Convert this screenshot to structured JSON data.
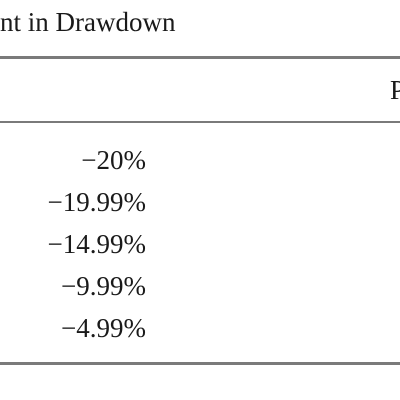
{
  "table": {
    "caption": "nt in Drawdown",
    "column_header": "P",
    "rows": [
      {
        "value": "−20%"
      },
      {
        "value": "−19.99%"
      },
      {
        "value": "−14.99%"
      },
      {
        "value": "−9.99%"
      },
      {
        "value": "−4.99%"
      }
    ]
  }
}
